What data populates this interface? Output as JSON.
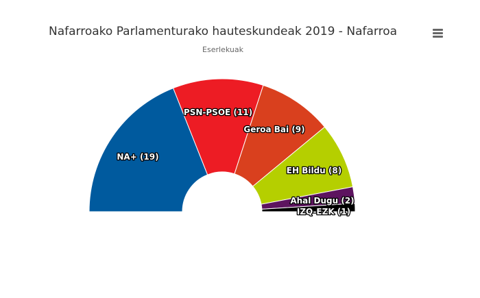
{
  "chart_data": {
    "type": "pie",
    "title": "Nafarroako Parlamenturako hauteskundeak 2019 - Nafarroa",
    "subtitle": "Eserlekuak",
    "series": [
      {
        "name": "Eserlekuak",
        "data": [
          {
            "label": "NA+ (19)",
            "party": "NA+",
            "value": 19,
            "color": "#005a9e"
          },
          {
            "label": "PSN-PSOE (11)",
            "party": "PSN-PSOE",
            "value": 11,
            "color": "#ed1c24"
          },
          {
            "label": "Geroa Bai (9)",
            "party": "Geroa Bai",
            "value": 9,
            "color": "#d9401e"
          },
          {
            "label": "EH Bildu (8)",
            "party": "EH Bildu",
            "value": 8,
            "color": "#b5cf00"
          },
          {
            "label": "Ahal Dugu (2)",
            "party": "Ahal Dugu",
            "value": 2,
            "color": "#5d145f"
          },
          {
            "label": "IZQ-EZK (1)",
            "party": "IZQ-EZK",
            "value": 1,
            "color": "#000000"
          }
        ]
      }
    ],
    "start_angle": -90,
    "end_angle": 90,
    "legend": "none"
  },
  "menu": {
    "icon": "hamburger-menu-icon"
  }
}
